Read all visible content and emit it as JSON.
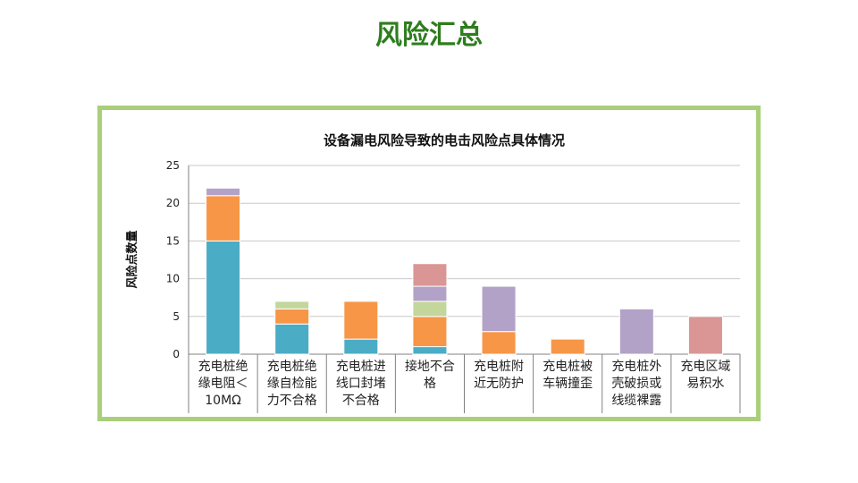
{
  "page_title": "风险汇总",
  "chart_data": {
    "type": "bar",
    "stacked": true,
    "title": "设备漏电风险导致的电击风险点具体情况",
    "xlabel": "",
    "ylabel": "风险点数量",
    "ylim": [
      0,
      25
    ],
    "yticks": [
      0,
      5,
      10,
      15,
      20,
      25
    ],
    "grid": true,
    "categories": [
      "充电桩绝缘电阻＜10MΩ",
      "充电桩绝缘自检能力不合格",
      "充电桩进线口封堵不合格",
      "接地不合格",
      "充电桩附近无防护",
      "充电桩被车辆撞歪",
      "充电桩外壳破损或线缆裸露",
      "充电区域易积水"
    ],
    "series": [
      {
        "color": "#4bacc6",
        "values": [
          15,
          4,
          2,
          1,
          0,
          0,
          0,
          0
        ]
      },
      {
        "color": "#f79646",
        "values": [
          6,
          2,
          5,
          4,
          3,
          2,
          0,
          0
        ]
      },
      {
        "color": "#c3d69b",
        "values": [
          0,
          1,
          0,
          2,
          0,
          0,
          0,
          0
        ]
      },
      {
        "color": "#b3a2c7",
        "values": [
          1,
          0,
          0,
          2,
          6,
          0,
          6,
          0
        ]
      },
      {
        "color": "#d99694",
        "values": [
          0,
          0,
          0,
          3,
          0,
          0,
          0,
          5
        ]
      }
    ]
  }
}
